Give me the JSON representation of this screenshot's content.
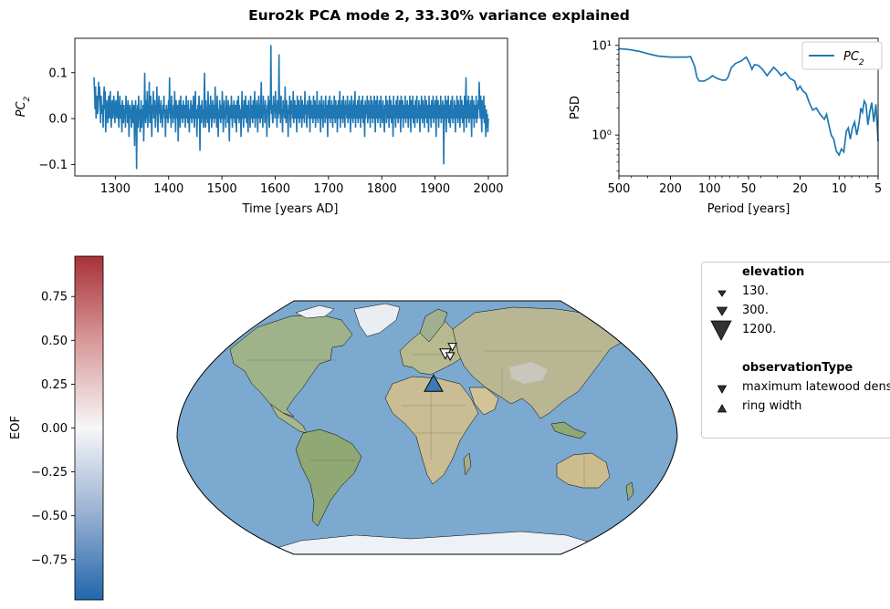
{
  "figure": {
    "title": "Euro2k PCA mode 2, 33.30% variance explained"
  },
  "chart_data": [
    {
      "type": "line",
      "name": "pc-timeseries",
      "xlabel": "Time [years AD]",
      "ylabel": "PC",
      "ylabel_sub": "2",
      "xlim": [
        1224,
        2036
      ],
      "ylim": [
        -0.125,
        0.175
      ],
      "xticks": [
        1300,
        1400,
        1500,
        1600,
        1700,
        1800,
        1900,
        2000
      ],
      "yticks": [
        -0.1,
        0.0,
        0.1
      ],
      "ytick_labels": [
        "−0.1",
        "0.0",
        "0.1"
      ],
      "color": "#1f77b4",
      "x_start": 1260,
      "x_end": 2000,
      "values": [
        0.09,
        0.06,
        0.02,
        0.07,
        0.0,
        0.02,
        0.05,
        0.01,
        0.02,
        0.08,
        0.04,
        0.07,
        0.03,
        -0.01,
        0.05,
        0.02,
        0.01,
        0.03,
        -0.02,
        0.04,
        0.07,
        0.02,
        0.06,
        -0.03,
        0.01,
        0.04,
        0.02,
        -0.01,
        0.03,
        0.05,
        0.0,
        0.02,
        0.06,
        0.01,
        -0.02,
        0.03,
        0.04,
        0.0,
        0.02,
        0.05,
        0.03,
        -0.01,
        0.01,
        0.04,
        0.02,
        0.0,
        0.03,
        0.06,
        0.01,
        -0.02,
        0.02,
        0.05,
        0.0,
        0.03,
        0.01,
        -0.03,
        0.04,
        0.02,
        -0.01,
        0.03,
        0.0,
        0.02,
        -0.02,
        0.05,
        0.01,
        0.03,
        -0.01,
        0.04,
        0.02,
        -0.04,
        0.01,
        0.03,
        0.0,
        0.02,
        -0.02,
        0.04,
        0.01,
        -0.01,
        0.03,
        0.02,
        -0.06,
        0.02,
        0.04,
        0.0,
        -0.11,
        0.01,
        0.03,
        -0.02,
        0.05,
        0.0,
        0.02,
        -0.03,
        0.01,
        0.04,
        -0.02,
        0.02,
        0.0,
        0.03,
        -0.05,
        0.01,
        0.1,
        0.02,
        -0.01,
        0.04,
        0.0,
        0.06,
        -0.02,
        0.03,
        0.01,
        0.08,
        -0.01,
        0.02,
        0.05,
        0.0,
        -0.04,
        0.03,
        0.01,
        0.06,
        0.0,
        0.02,
        0.04,
        -0.02,
        0.03,
        0.01,
        0.07,
        0.0,
        -0.03,
        0.02,
        0.05,
        0.01,
        0.03,
        -0.01,
        0.04,
        0.0,
        0.02,
        -0.02,
        0.03,
        0.01,
        0.05,
        0.0,
        0.02,
        -0.04,
        0.01,
        0.03,
        0.0,
        0.02,
        -0.01,
        0.04,
        0.01,
        0.09,
        0.0,
        0.03,
        -0.02,
        0.05,
        0.01,
        0.02,
        -0.01,
        0.03,
        0.0,
        0.06,
        0.02,
        -0.03,
        0.04,
        0.01,
        0.0,
        0.03,
        -0.05,
        0.02,
        0.04,
        0.01,
        -0.02,
        0.05,
        0.0,
        0.03,
        0.01,
        -0.01,
        0.04,
        0.02,
        0.0,
        0.03,
        -0.02,
        0.02,
        0.05,
        0.0,
        0.03,
        -0.01,
        0.04,
        0.01,
        -0.03,
        0.02,
        0.0,
        0.04,
        0.02,
        -0.01,
        0.03,
        0.0,
        0.05,
        0.01,
        -0.02,
        0.03,
        0.06,
        0.0,
        0.02,
        -0.04,
        0.01,
        0.03,
        0.0,
        0.05,
        0.02,
        -0.07,
        0.01,
        0.03,
        -0.01,
        0.04,
        0.0,
        0.02,
        -0.02,
        0.03,
        0.1,
        0.01,
        -0.02,
        0.04,
        0.0,
        0.02,
        -0.01,
        0.06,
        0.01,
        -0.03,
        0.03,
        0.0,
        0.05,
        0.02,
        -0.02,
        0.01,
        0.04,
        0.0,
        0.03,
        -0.01,
        0.02,
        0.07,
        0.0,
        0.03,
        -0.02,
        0.05,
        0.01,
        -0.04,
        0.02,
        0.0,
        0.04,
        0.01,
        -0.01,
        0.03,
        0.0,
        0.06,
        0.02,
        -0.03,
        0.01,
        0.04,
        0.0,
        0.02,
        -0.02,
        0.05,
        0.01,
        0.03,
        -0.01,
        0.04,
        0.0,
        -0.05,
        0.02,
        0.03,
        0.0,
        0.05,
        0.01,
        -0.02,
        0.03,
        0.0,
        0.04,
        0.02,
        -0.01,
        0.03,
        0.01,
        -0.03,
        0.04,
        0.0,
        0.02,
        0.05,
        -0.01,
        0.03,
        0.0,
        0.02,
        -0.04,
        0.01,
        0.06,
        0.0,
        0.03,
        -0.02,
        0.04,
        0.01,
        0.0,
        0.05,
        0.02,
        -0.01,
        0.03,
        0.0,
        -0.03,
        0.04,
        0.01,
        0.02,
        -0.02,
        0.05,
        0.0,
        0.03,
        0.01,
        -0.01,
        0.04,
        0.0,
        0.02,
        0.06,
        -0.02,
        0.03,
        0.0,
        0.04,
        0.01,
        -0.03,
        0.02,
        0.05,
        0.0,
        0.03,
        -0.01,
        0.04,
        0.08,
        0.0,
        0.02,
        -0.02,
        0.05,
        0.01,
        0.03,
        -0.01,
        0.04,
        0.0,
        0.02,
        -0.04,
        0.03,
        0.01,
        0.05,
        0.0,
        -0.02,
        0.04,
        0.02,
        0.16,
        0.01,
        0.03,
        0.0,
        -0.01,
        0.05,
        0.02,
        0.03,
        0.0,
        0.06,
        0.01,
        0.03,
        -0.02,
        0.04,
        0.0,
        0.02,
        0.14,
        0.01,
        0.03,
        -0.01,
        0.05,
        0.0,
        0.02,
        -0.03,
        0.04,
        0.01,
        0.03,
        0.0,
        0.07,
        0.02,
        -0.01,
        0.04,
        0.0,
        0.02,
        -0.04,
        0.03,
        0.01,
        0.05,
        0.0,
        -0.02,
        0.04,
        0.01,
        0.03,
        0.0,
        0.06,
        -0.01,
        0.02,
        0.04,
        0.0,
        0.03,
        0.01,
        -0.03,
        0.05,
        0.0,
        0.02,
        0.04,
        -0.01,
        0.03,
        0.0,
        0.05,
        0.01,
        -0.02,
        0.04,
        0.02,
        0.0,
        0.03,
        -0.01,
        0.06,
        0.01,
        0.03,
        0.0,
        -0.02,
        0.04,
        0.01,
        0.03,
        0.0,
        0.05,
        -0.03,
        0.02,
        0.04,
        0.0,
        0.03,
        0.01,
        -0.01,
        0.05,
        0.0,
        0.02,
        0.04,
        -0.02,
        0.03,
        0.0,
        0.06,
        0.01,
        -0.01,
        0.03,
        0.0,
        0.04,
        0.02,
        -0.03,
        0.01,
        0.05,
        0.0,
        0.03,
        -0.02,
        0.04,
        0.01,
        0.02,
        -0.01,
        0.05,
        0.0,
        0.03,
        0.01,
        -0.04,
        0.04,
        0.0,
        0.02,
        0.05,
        -0.01,
        0.03,
        0.0,
        0.04,
        0.01,
        -0.02,
        0.03,
        0.0,
        0.05,
        0.02,
        -0.01,
        0.04,
        0.0,
        0.03,
        -0.03,
        0.01,
        0.04,
        0.0,
        0.02,
        0.06,
        -0.02,
        0.03,
        0.0,
        0.04,
        0.01,
        -0.01,
        0.05,
        0.0,
        0.03,
        -0.02,
        0.04,
        0.01,
        0.02,
        0.0,
        0.05,
        -0.01,
        0.03,
        0.0,
        0.04,
        0.02,
        -0.03,
        0.01,
        0.05,
        0.0,
        0.03,
        -0.01,
        0.04,
        0.0,
        0.02,
        0.06,
        -0.02,
        0.03,
        0.01,
        0.0,
        0.04,
        -0.01,
        0.02,
        0.05,
        0.0,
        0.03,
        -0.02,
        0.04,
        0.01,
        0.0,
        0.05,
        -0.01,
        0.03,
        0.02,
        -0.04,
        0.04,
        0.0,
        0.03,
        0.01,
        0.05,
        -0.01,
        0.02,
        0.04,
        0.0,
        0.03,
        -0.02,
        0.05,
        0.01,
        0.0,
        0.04,
        -0.01,
        0.03,
        0.0,
        0.05,
        0.02,
        -0.03,
        0.04,
        0.0,
        0.02,
        0.05,
        -0.01,
        0.03,
        0.0,
        0.04,
        0.01,
        -0.02,
        0.05,
        0.0,
        0.03,
        -0.01,
        0.04,
        0.02,
        0.0,
        -0.03,
        0.03,
        0.01,
        0.05,
        -0.01,
        0.02,
        0.04,
        0.0,
        0.03,
        -0.02,
        0.05,
        0.01,
        0.0,
        0.04,
        -0.01,
        0.03,
        0.02,
        -0.04,
        0.05,
        0.0,
        0.03,
        0.01,
        -0.02,
        0.04,
        0.0,
        0.02,
        0.05,
        -0.01,
        0.03,
        0.0,
        0.04,
        0.01,
        -0.03,
        0.05,
        0.0,
        0.02,
        0.04,
        -0.02,
        0.03,
        0.01,
        0.0,
        0.05,
        -0.01,
        0.03,
        0.0,
        0.04,
        0.02,
        -0.02,
        0.03,
        0.0,
        0.05,
        0.01,
        -0.03,
        0.04,
        0.0,
        0.02,
        0.05,
        -0.01,
        0.03,
        0.01,
        -0.02,
        0.04,
        0.0,
        0.03,
        0.05,
        -0.01,
        0.02,
        0.0,
        0.04,
        0.01,
        -0.03,
        0.03,
        0.0,
        0.05,
        0.02,
        -0.01,
        0.04,
        0.0,
        0.03,
        -0.02,
        0.05,
        0.01,
        0.0,
        0.04,
        -0.01,
        0.03,
        0.02,
        -0.03,
        0.05,
        0.0,
        0.03,
        0.01,
        -0.02,
        0.04,
        0.0,
        0.02,
        0.05,
        -0.01,
        0.03,
        0.0,
        0.04,
        0.01,
        -0.04,
        0.05,
        0.0,
        0.02,
        0.04,
        -0.02,
        0.03,
        0.01,
        0.0,
        0.05,
        -0.01,
        0.03,
        0.0,
        0.04,
        0.02,
        -0.1,
        0.03,
        0.0,
        0.05,
        0.01,
        -0.03,
        0.04,
        0.0,
        0.02,
        0.05,
        -0.01,
        0.03,
        0.01,
        -0.02,
        0.04,
        0.0,
        0.03,
        0.05,
        -0.01,
        0.02,
        0.0,
        0.04,
        0.01,
        -0.03,
        0.03,
        0.0,
        0.05,
        0.02,
        -0.01,
        0.04,
        0.0,
        0.03,
        -0.02,
        0.05,
        0.01,
        0.0,
        0.04,
        -0.01,
        0.03,
        0.02,
        -0.03,
        0.05,
        0.0,
        0.03,
        0.09,
        -0.02,
        0.04,
        0.0,
        0.02,
        0.05,
        -0.01,
        0.03,
        0.0,
        0.04,
        0.01,
        -0.04,
        0.05,
        0.0,
        0.02,
        0.04,
        -0.02,
        0.03,
        0.01,
        0.0,
        0.05,
        -0.01,
        0.03,
        0.0,
        0.04,
        0.02,
        0.08,
        0.03,
        0.0,
        0.05,
        0.01,
        -0.03,
        0.04,
        0.0,
        0.02,
        0.05,
        -0.01,
        0.03,
        0.0,
        -0.04,
        0.02,
        -0.02,
        0.01,
        -0.03,
        0.0
      ]
    },
    {
      "type": "line",
      "name": "psd",
      "xlabel": "Period [years]",
      "ylabel": "PSD",
      "xscale": "log",
      "yscale": "log",
      "x_inverted": true,
      "xlim": [
        500,
        5
      ],
      "ylim": [
        0.35,
        12
      ],
      "xticks": [
        500,
        200,
        100,
        50,
        20,
        10,
        5
      ],
      "yticks": [
        1,
        10
      ],
      "ytick_labels": [
        "10⁰",
        "10¹"
      ],
      "legend": {
        "label": "PC",
        "label_sub": "2",
        "position": "upper right"
      },
      "color": "#1f77b4",
      "points": [
        [
          500,
          9.2
        ],
        [
          420,
          9.0
        ],
        [
          350,
          8.6
        ],
        [
          300,
          8.1
        ],
        [
          250,
          7.6
        ],
        [
          200,
          7.4
        ],
        [
          170,
          7.4
        ],
        [
          150,
          7.4
        ],
        [
          140,
          7.5
        ],
        [
          130,
          5.8
        ],
        [
          125,
          4.4
        ],
        [
          120,
          4.0
        ],
        [
          110,
          4.0
        ],
        [
          100,
          4.3
        ],
        [
          95,
          4.6
        ],
        [
          88,
          4.3
        ],
        [
          80,
          4.1
        ],
        [
          75,
          4.1
        ],
        [
          72,
          4.4
        ],
        [
          68,
          5.6
        ],
        [
          63,
          6.3
        ],
        [
          57,
          6.7
        ],
        [
          52,
          7.4
        ],
        [
          49,
          6.3
        ],
        [
          47,
          5.4
        ],
        [
          45,
          6.1
        ],
        [
          42,
          6.0
        ],
        [
          39,
          5.4
        ],
        [
          36,
          4.6
        ],
        [
          34,
          5.1
        ],
        [
          32,
          5.7
        ],
        [
          30,
          5.2
        ],
        [
          28,
          4.6
        ],
        [
          26,
          5.0
        ],
        [
          24,
          4.3
        ],
        [
          22,
          4.0
        ],
        [
          21,
          3.2
        ],
        [
          20,
          3.5
        ],
        [
          19,
          3.1
        ],
        [
          18,
          2.9
        ],
        [
          17,
          2.3
        ],
        [
          16,
          1.9
        ],
        [
          15,
          2.0
        ],
        [
          14,
          1.7
        ],
        [
          13.5,
          1.6
        ],
        [
          13,
          1.5
        ],
        [
          12.5,
          1.7
        ],
        [
          12,
          1.3
        ],
        [
          11.5,
          1.0
        ],
        [
          11,
          0.9
        ],
        [
          10.5,
          0.66
        ],
        [
          10,
          0.6
        ],
        [
          9.6,
          0.7
        ],
        [
          9.2,
          0.65
        ],
        [
          8.8,
          1.1
        ],
        [
          8.5,
          1.2
        ],
        [
          8.2,
          0.9
        ],
        [
          7.9,
          1.2
        ],
        [
          7.6,
          1.4
        ],
        [
          7.3,
          1.0
        ],
        [
          7.0,
          1.4
        ],
        [
          6.8,
          2.0
        ],
        [
          6.6,
          1.8
        ],
        [
          6.4,
          2.4
        ],
        [
          6.2,
          2.2
        ],
        [
          6.0,
          1.3
        ],
        [
          5.8,
          1.8
        ],
        [
          5.6,
          2.3
        ],
        [
          5.4,
          1.4
        ],
        [
          5.2,
          2.2
        ],
        [
          5.0,
          0.85
        ]
      ]
    },
    {
      "type": "scatter",
      "name": "eof-map",
      "colorbar_label": "EOF",
      "colorbar_range": [
        -0.98,
        0.98
      ],
      "colorbar_ticks": [
        0.75,
        0.5,
        0.25,
        0.0,
        -0.25,
        -0.5,
        -0.75
      ],
      "colorbar_tick_labels": [
        "0.75",
        "0.50",
        "0.25",
        "0.00",
        "−0.25",
        "−0.50",
        "−0.75"
      ],
      "colormap": [
        "#2166ac",
        "#f7f7f7",
        "#a83238"
      ],
      "points": [
        {
          "lon": 5,
          "lat": 40,
          "elevation": 1200,
          "observationType": "ring width",
          "eof": -0.85
        },
        {
          "lon": 16,
          "lat": 63,
          "elevation": 300,
          "observationType": "maximum latewood density",
          "eof": 0.05
        },
        {
          "lon": 20,
          "lat": 61,
          "elevation": 130,
          "observationType": "maximum latewood density",
          "eof": -0.02
        },
        {
          "lon": 23,
          "lat": 68,
          "elevation": 130,
          "observationType": "maximum latewood density",
          "eof": 0.02
        }
      ]
    }
  ],
  "legend": {
    "elevation_title": "elevation",
    "elevation_entries": [
      {
        "label": "130.",
        "marker": "triangle-down",
        "size": "small"
      },
      {
        "label": "300.",
        "marker": "triangle-down",
        "size": "medium"
      },
      {
        "label": "1200.",
        "marker": "triangle-down",
        "size": "large"
      }
    ],
    "type_title": "observationType",
    "type_entries": [
      {
        "label": "maximum latewood density",
        "marker": "triangle-down"
      },
      {
        "label": "ring width",
        "marker": "triangle-up"
      }
    ],
    "marker_color": "#333333"
  },
  "map": {
    "ocean_color": "#7ba9cf",
    "ice_color": "#eef1f5"
  }
}
